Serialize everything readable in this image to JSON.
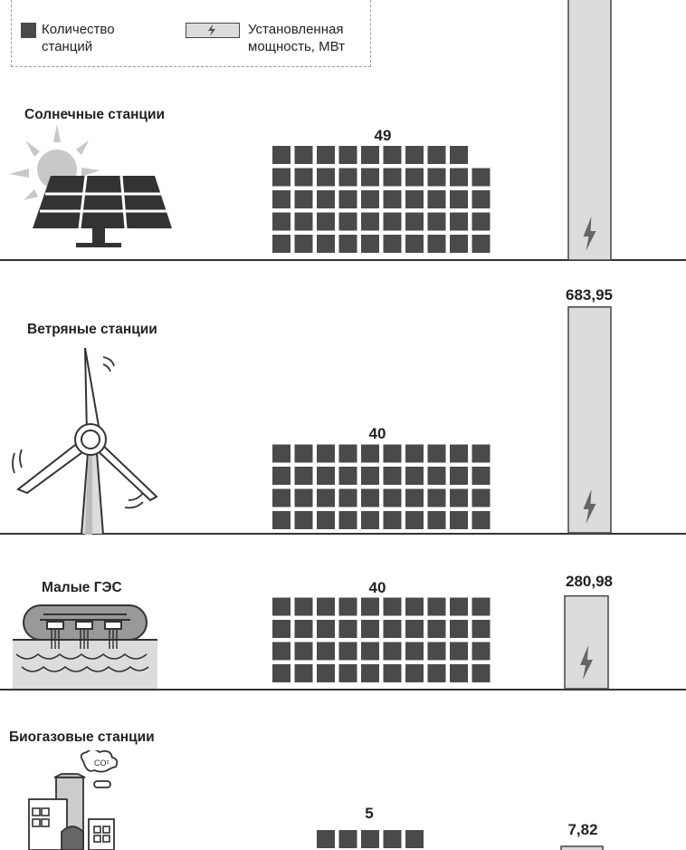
{
  "legend": {
    "count_label": "Количество\nстанций",
    "power_label": "Установленная\nмощность, МВт",
    "count_color": "#4a4a4a",
    "power_color": "#dcdcdc"
  },
  "chart_data": {
    "type": "bar",
    "categories": [
      "Солнечные станции",
      "Ветряные станции",
      "Малые ГЭС",
      "Биогазовые станции"
    ],
    "series": [
      {
        "name": "Количество станций",
        "values": [
          49,
          40,
          40,
          5
        ],
        "labels": [
          "49",
          "40",
          "40",
          "5"
        ]
      },
      {
        "name": "Установленная мощность, МВт",
        "values": [
          null,
          683.95,
          280.98,
          7.82
        ],
        "labels": [
          "",
          "683,95",
          "280,98",
          "7,82"
        ]
      }
    ],
    "note": ""
  },
  "sections": [
    {
      "title": "Солнечные станции",
      "icon": "solar-panel-icon"
    },
    {
      "title": "Ветряные станции",
      "icon": "wind-turbine-icon"
    },
    {
      "title": "Малые ГЭС",
      "icon": "hydro-station-icon"
    },
    {
      "title": "Биогазовые станции",
      "icon": "biogas-plant-icon"
    }
  ]
}
